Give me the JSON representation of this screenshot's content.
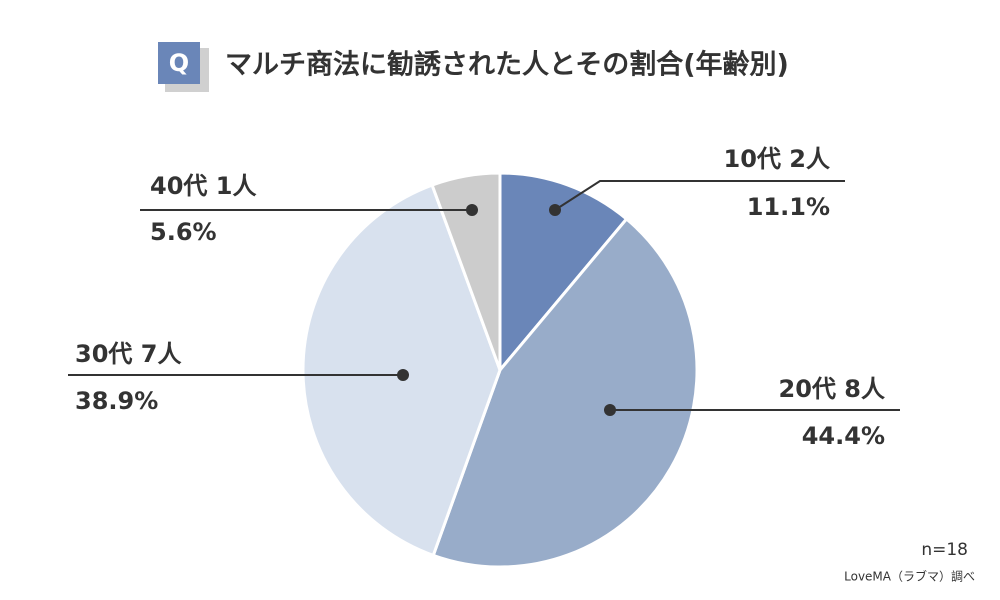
{
  "chart_data": {
    "type": "pie",
    "badge": "Q",
    "title": "マルチ商法に勧誘された人とその割合(年齢別)",
    "categories": [
      "10代 2人",
      "20代 8人",
      "30代 7人",
      "40代 1人"
    ],
    "values": [
      11.1,
      44.4,
      38.9,
      5.6
    ],
    "value_labels": [
      "11.1%",
      "44.4%",
      "38.9%",
      "5.6%"
    ],
    "colors": [
      "#6a86b8",
      "#98acc9",
      "#d8e1ee",
      "#cccccc"
    ],
    "note": "n=18",
    "source": "LoveMA（ラブマ）調べ"
  }
}
